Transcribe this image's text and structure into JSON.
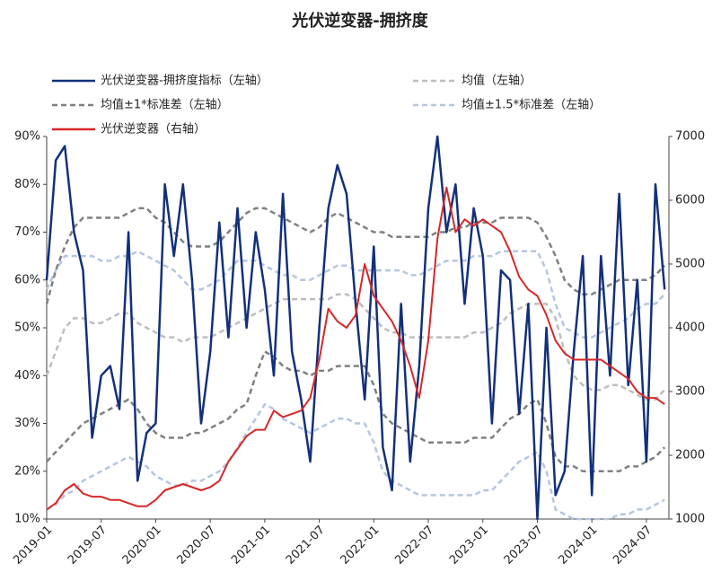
{
  "chart_data": {
    "type": "line",
    "title": "光伏逆变器-拥挤度",
    "categories": [
      "2019-01",
      null,
      null,
      null,
      null,
      null,
      "2019-07",
      null,
      null,
      null,
      null,
      null,
      "2020-01",
      null,
      null,
      null,
      null,
      null,
      "2020-07",
      null,
      null,
      null,
      null,
      null,
      "2021-01",
      null,
      null,
      null,
      null,
      null,
      "2021-07",
      null,
      null,
      null,
      null,
      null,
      "2022-01",
      null,
      null,
      null,
      null,
      null,
      "2022-07",
      null,
      null,
      null,
      null,
      null,
      "2023-01",
      null,
      null,
      null,
      null,
      null,
      "2023-07",
      null,
      null,
      null,
      null,
      null,
      "2024-01",
      null,
      null,
      null,
      null,
      null,
      "2024-07",
      null,
      null
    ],
    "ylim": [
      10,
      90
    ],
    "yticks": [
      {
        "value": 10,
        "label": "10%"
      },
      {
        "value": 20,
        "label": "20%"
      },
      {
        "value": 30,
        "label": "30%"
      },
      {
        "value": 40,
        "label": "40%"
      },
      {
        "value": 50,
        "label": "50%"
      },
      {
        "value": 60,
        "label": "60%"
      },
      {
        "value": 70,
        "label": "70%"
      },
      {
        "value": 80,
        "label": "80%"
      },
      {
        "value": 90,
        "label": "90%"
      }
    ],
    "y2lim": [
      1000,
      7000
    ],
    "y2ticks": [
      1000,
      2000,
      3000,
      4000,
      5000,
      6000,
      7000
    ],
    "series": [
      {
        "name": "光伏逆变器-拥挤度指标（左轴）",
        "color": "#13307a",
        "style": "solid",
        "values": [
          60,
          85,
          88,
          70,
          62,
          27,
          40,
          42,
          33,
          70,
          18,
          28,
          30,
          80,
          65,
          80,
          60,
          30,
          45,
          72,
          48,
          75,
          50,
          70,
          58,
          40,
          78,
          45,
          35,
          22,
          50,
          75,
          84,
          78,
          55,
          35,
          67,
          25,
          16,
          55,
          22,
          42,
          75,
          90,
          70,
          80,
          55,
          75,
          65,
          30,
          62,
          60,
          32,
          55,
          10,
          50,
          15,
          20,
          45,
          65,
          15,
          65,
          40,
          78,
          38,
          60,
          22,
          80,
          58
        ]
      },
      {
        "name": "均值（左轴）",
        "color": "#bdbdbd",
        "style": "dashed",
        "values": [
          40,
          45,
          50,
          52,
          52,
          51,
          51,
          52,
          53,
          53,
          51,
          50,
          49,
          48,
          48,
          47,
          48,
          48,
          48,
          49,
          50,
          51,
          52,
          53,
          54,
          55,
          56,
          56,
          56,
          56,
          56,
          56,
          57,
          57,
          56,
          54,
          52,
          50,
          49,
          49,
          48,
          48,
          48,
          48,
          48,
          48,
          48,
          49,
          49,
          50,
          51,
          53,
          54,
          55,
          55,
          55,
          52,
          45,
          40,
          38,
          37,
          37,
          38,
          38,
          37,
          36,
          35,
          35,
          37
        ]
      },
      {
        "name": "均值±1*标准差（左轴）",
        "color": "#808080",
        "style": "dashed",
        "upper": [
          55,
          62,
          67,
          71,
          73,
          73,
          73,
          73,
          73,
          74,
          75,
          75,
          73,
          72,
          70,
          68,
          67,
          67,
          67,
          68,
          70,
          72,
          74,
          75,
          75,
          74,
          73,
          72,
          71,
          70,
          71,
          73,
          74,
          73,
          72,
          71,
          70,
          70,
          69,
          69,
          69,
          69,
          69,
          70,
          70,
          71,
          71,
          72,
          72,
          72,
          73,
          73,
          73,
          73,
          72,
          69,
          65,
          60,
          58,
          57,
          57,
          58,
          59,
          60,
          60,
          60,
          60,
          61,
          63
        ],
        "lower": [
          22,
          24,
          26,
          28,
          30,
          31,
          32,
          33,
          34,
          35,
          33,
          30,
          28,
          27,
          27,
          27,
          28,
          28,
          29,
          30,
          31,
          33,
          34,
          40,
          45,
          44,
          42,
          41,
          41,
          40,
          41,
          41,
          42,
          42,
          42,
          42,
          38,
          32,
          30,
          29,
          28,
          27,
          26,
          26,
          26,
          26,
          26,
          27,
          27,
          27,
          29,
          31,
          32,
          34,
          35,
          30,
          23,
          21,
          21,
          20,
          20,
          20,
          20,
          20,
          21,
          21,
          22,
          23,
          25
        ]
      },
      {
        "name": "均值±1.5*标准差（左轴）",
        "color": "#b4c6e0",
        "style": "dashed",
        "upper": [
          58,
          62,
          65,
          65,
          65,
          65,
          64,
          64,
          65,
          65,
          66,
          65,
          64,
          63,
          62,
          60,
          58,
          58,
          59,
          60,
          62,
          64,
          64,
          64,
          63,
          62,
          61,
          61,
          60,
          60,
          61,
          62,
          63,
          63,
          62,
          62,
          62,
          62,
          62,
          62,
          61,
          61,
          62,
          63,
          64,
          64,
          64,
          65,
          65,
          65,
          66,
          66,
          66,
          66,
          66,
          62,
          55,
          50,
          49,
          48,
          48,
          49,
          50,
          51,
          52,
          54,
          55,
          55,
          57
        ],
        "lower": [
          12,
          13,
          15,
          16,
          18,
          19,
          20,
          21,
          22,
          23,
          22,
          21,
          19,
          18,
          17,
          17,
          18,
          18,
          19,
          20,
          22,
          25,
          28,
          31,
          34,
          33,
          31,
          30,
          29,
          28,
          29,
          30,
          31,
          31,
          30,
          30,
          26,
          20,
          18,
          17,
          16,
          15,
          15,
          15,
          15,
          15,
          15,
          15,
          16,
          16,
          18,
          20,
          22,
          23,
          24,
          20,
          12,
          11,
          10,
          10,
          10,
          10,
          10,
          11,
          11,
          12,
          12,
          13,
          14
        ]
      },
      {
        "name": "光伏逆变器（右轴）",
        "color": "#d62728",
        "style": "solid",
        "axis": "y2",
        "values": [
          1150,
          1250,
          1450,
          1550,
          1400,
          1350,
          1350,
          1300,
          1300,
          1250,
          1200,
          1200,
          1300,
          1450,
          1500,
          1550,
          1500,
          1450,
          1500,
          1600,
          1900,
          2100,
          2300,
          2400,
          2400,
          2700,
          2600,
          2650,
          2700,
          2900,
          3500,
          4300,
          4100,
          4000,
          4200,
          5000,
          4500,
          4300,
          4100,
          3800,
          3400,
          2900,
          3800,
          5400,
          6200,
          5500,
          5700,
          5600,
          5700,
          5600,
          5500,
          5200,
          4800,
          4600,
          4500,
          4200,
          3800,
          3600,
          3500,
          3500,
          3500,
          3500,
          3400,
          3300,
          3200,
          3000,
          2900,
          2900,
          2800
        ]
      }
    ]
  }
}
